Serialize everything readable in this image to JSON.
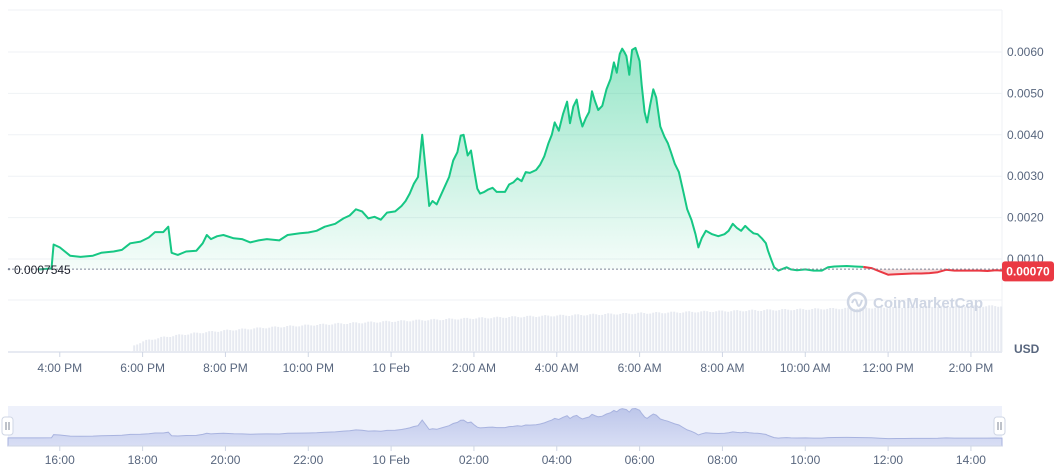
{
  "chart_data": {
    "type": "area",
    "currency_label": "USD",
    "watermark": "CoinMarketCap",
    "baseline_label": "0.0007545",
    "baseline_value": 0.0007545,
    "current_price_label": "0.00070",
    "current_price": 0.0007,
    "ylim": [
      -0.0001,
      0.0065
    ],
    "y_ticks": [
      {
        "value": 0.001,
        "label": "0.0010"
      },
      {
        "value": 0.002,
        "label": "0.0020"
      },
      {
        "value": 0.003,
        "label": "0.0030"
      },
      {
        "value": 0.004,
        "label": "0.0040"
      },
      {
        "value": 0.005,
        "label": "0.0050"
      },
      {
        "value": 0.006,
        "label": "0.0060"
      }
    ],
    "xlim": [
      14.75,
      38.75
    ],
    "x_ticks": [
      {
        "t": 16,
        "label": "4:00 PM"
      },
      {
        "t": 18,
        "label": "6:00 PM"
      },
      {
        "t": 20,
        "label": "8:00 PM"
      },
      {
        "t": 22,
        "label": "10:00 PM"
      },
      {
        "t": 24,
        "label": "10 Feb"
      },
      {
        "t": 26,
        "label": "2:00 AM"
      },
      {
        "t": 28,
        "label": "4:00 AM"
      },
      {
        "t": 30,
        "label": "6:00 AM"
      },
      {
        "t": 32,
        "label": "8:00 AM"
      },
      {
        "t": 34,
        "label": "10:00 AM"
      },
      {
        "t": 36,
        "label": "12:00 PM"
      },
      {
        "t": 38,
        "label": "2:00 PM"
      }
    ],
    "navigator_ticks": [
      {
        "t": 16,
        "label": "16:00"
      },
      {
        "t": 18,
        "label": "18:00"
      },
      {
        "t": 20,
        "label": "20:00"
      },
      {
        "t": 22,
        "label": "22:00"
      },
      {
        "t": 24,
        "label": "10 Feb"
      },
      {
        "t": 26,
        "label": "02:00"
      },
      {
        "t": 28,
        "label": "04:00"
      },
      {
        "t": 30,
        "label": "06:00"
      },
      {
        "t": 32,
        "label": "08:00"
      },
      {
        "t": 34,
        "label": "10:00"
      },
      {
        "t": 36,
        "label": "12:00"
      },
      {
        "t": 38,
        "label": "14:00"
      }
    ],
    "series": [
      {
        "points": [
          [
            15.5,
            0.00075
          ],
          [
            15.8,
            0.00077
          ],
          [
            15.85,
            0.00135
          ],
          [
            16.0,
            0.00128
          ],
          [
            16.25,
            0.00108
          ],
          [
            16.5,
            0.00105
          ],
          [
            16.8,
            0.00108
          ],
          [
            17.0,
            0.00115
          ],
          [
            17.3,
            0.00118
          ],
          [
            17.5,
            0.00122
          ],
          [
            17.7,
            0.00138
          ],
          [
            17.95,
            0.00142
          ],
          [
            18.15,
            0.00152
          ],
          [
            18.3,
            0.00165
          ],
          [
            18.5,
            0.00165
          ],
          [
            18.62,
            0.00178
          ],
          [
            18.7,
            0.00115
          ],
          [
            18.85,
            0.0011
          ],
          [
            19.05,
            0.00118
          ],
          [
            19.3,
            0.0012
          ],
          [
            19.45,
            0.00138
          ],
          [
            19.55,
            0.00158
          ],
          [
            19.65,
            0.00148
          ],
          [
            19.8,
            0.00155
          ],
          [
            19.95,
            0.00158
          ],
          [
            20.2,
            0.0015
          ],
          [
            20.4,
            0.00148
          ],
          [
            20.6,
            0.0014
          ],
          [
            20.8,
            0.00145
          ],
          [
            21.0,
            0.00148
          ],
          [
            21.3,
            0.00145
          ],
          [
            21.5,
            0.00158
          ],
          [
            21.8,
            0.00162
          ],
          [
            22.0,
            0.00164
          ],
          [
            22.2,
            0.00168
          ],
          [
            22.4,
            0.00178
          ],
          [
            22.65,
            0.00185
          ],
          [
            22.85,
            0.00198
          ],
          [
            23.0,
            0.00205
          ],
          [
            23.15,
            0.0022
          ],
          [
            23.3,
            0.00215
          ],
          [
            23.45,
            0.00198
          ],
          [
            23.6,
            0.00202
          ],
          [
            23.75,
            0.00195
          ],
          [
            23.9,
            0.00212
          ],
          [
            24.1,
            0.00215
          ],
          [
            24.25,
            0.00228
          ],
          [
            24.35,
            0.0024
          ],
          [
            24.45,
            0.00258
          ],
          [
            24.55,
            0.00282
          ],
          [
            24.65,
            0.00298
          ],
          [
            24.75,
            0.004
          ],
          [
            24.85,
            0.003
          ],
          [
            24.92,
            0.00228
          ],
          [
            25.0,
            0.0024
          ],
          [
            25.1,
            0.00232
          ],
          [
            25.25,
            0.00265
          ],
          [
            25.4,
            0.00298
          ],
          [
            25.5,
            0.00338
          ],
          [
            25.6,
            0.00358
          ],
          [
            25.68,
            0.00398
          ],
          [
            25.75,
            0.004
          ],
          [
            25.85,
            0.0035
          ],
          [
            25.93,
            0.00362
          ],
          [
            26.0,
            0.00318
          ],
          [
            26.08,
            0.0027
          ],
          [
            26.15,
            0.00258
          ],
          [
            26.25,
            0.00262
          ],
          [
            26.35,
            0.00268
          ],
          [
            26.45,
            0.00272
          ],
          [
            26.55,
            0.00262
          ],
          [
            26.75,
            0.00262
          ],
          [
            26.85,
            0.0028
          ],
          [
            26.95,
            0.00285
          ],
          [
            27.05,
            0.00295
          ],
          [
            27.15,
            0.00288
          ],
          [
            27.25,
            0.0031
          ],
          [
            27.35,
            0.00308
          ],
          [
            27.5,
            0.00315
          ],
          [
            27.6,
            0.00328
          ],
          [
            27.7,
            0.00348
          ],
          [
            27.8,
            0.0038
          ],
          [
            27.88,
            0.004
          ],
          [
            27.95,
            0.0043
          ],
          [
            28.05,
            0.0041
          ],
          [
            28.15,
            0.0045
          ],
          [
            28.25,
            0.0048
          ],
          [
            28.32,
            0.00428
          ],
          [
            28.4,
            0.00468
          ],
          [
            28.48,
            0.00485
          ],
          [
            28.55,
            0.00445
          ],
          [
            28.62,
            0.0042
          ],
          [
            28.7,
            0.0044
          ],
          [
            28.78,
            0.00455
          ],
          [
            28.85,
            0.00505
          ],
          [
            28.92,
            0.00482
          ],
          [
            29.0,
            0.0046
          ],
          [
            29.1,
            0.0047
          ],
          [
            29.2,
            0.0051
          ],
          [
            29.3,
            0.00535
          ],
          [
            29.38,
            0.00575
          ],
          [
            29.45,
            0.0055
          ],
          [
            29.52,
            0.00595
          ],
          [
            29.58,
            0.00608
          ],
          [
            29.63,
            0.006
          ],
          [
            29.68,
            0.0059
          ],
          [
            29.75,
            0.00545
          ],
          [
            29.82,
            0.00605
          ],
          [
            29.9,
            0.0061
          ],
          [
            30.0,
            0.00578
          ],
          [
            30.05,
            0.0052
          ],
          [
            30.12,
            0.00455
          ],
          [
            30.18,
            0.0043
          ],
          [
            30.25,
            0.0047
          ],
          [
            30.33,
            0.0051
          ],
          [
            30.4,
            0.0049
          ],
          [
            30.5,
            0.0042
          ],
          [
            30.6,
            0.00395
          ],
          [
            30.68,
            0.0038
          ],
          [
            30.75,
            0.0036
          ],
          [
            30.85,
            0.0033
          ],
          [
            30.95,
            0.0031
          ],
          [
            31.05,
            0.00265
          ],
          [
            31.15,
            0.0022
          ],
          [
            31.25,
            0.00195
          ],
          [
            31.35,
            0.0016
          ],
          [
            31.42,
            0.00128
          ],
          [
            31.5,
            0.0015
          ],
          [
            31.6,
            0.00168
          ],
          [
            31.75,
            0.0016
          ],
          [
            31.9,
            0.00155
          ],
          [
            32.05,
            0.0016
          ],
          [
            32.15,
            0.00168
          ],
          [
            32.25,
            0.00185
          ],
          [
            32.35,
            0.00175
          ],
          [
            32.45,
            0.00168
          ],
          [
            32.55,
            0.0018
          ],
          [
            32.65,
            0.0017
          ],
          [
            32.75,
            0.00162
          ],
          [
            32.85,
            0.0016
          ],
          [
            32.95,
            0.0015
          ],
          [
            33.05,
            0.00138
          ],
          [
            33.1,
            0.0012
          ],
          [
            33.18,
            0.00098
          ],
          [
            33.25,
            0.0008
          ],
          [
            33.35,
            0.00072
          ],
          [
            33.42,
            0.00075
          ],
          [
            33.55,
            0.0008
          ],
          [
            33.65,
            0.00075
          ],
          [
            33.8,
            0.00073
          ],
          [
            34.0,
            0.00075
          ],
          [
            34.2,
            0.00072
          ],
          [
            34.4,
            0.00072
          ],
          [
            34.55,
            0.0008
          ],
          [
            34.7,
            0.00082
          ],
          [
            35.0,
            0.00083
          ],
          [
            35.2,
            0.00082
          ],
          [
            35.4,
            0.00081
          ]
        ]
      },
      {
        "points": [
          [
            35.4,
            0.00081
          ],
          [
            35.6,
            0.00078
          ],
          [
            35.8,
            0.0007
          ],
          [
            36.0,
            0.00062
          ],
          [
            36.2,
            0.00063
          ],
          [
            36.4,
            0.00064
          ],
          [
            36.6,
            0.00065
          ],
          [
            36.8,
            0.00065
          ],
          [
            37.0,
            0.00066
          ],
          [
            37.2,
            0.00068
          ],
          [
            37.4,
            0.00074
          ],
          [
            37.6,
            0.00072
          ],
          [
            37.8,
            0.00072
          ],
          [
            38.0,
            0.00072
          ],
          [
            38.2,
            0.00072
          ],
          [
            38.4,
            0.00071
          ],
          [
            38.6,
            0.00073
          ],
          [
            38.75,
            0.00072
          ]
        ]
      }
    ]
  }
}
